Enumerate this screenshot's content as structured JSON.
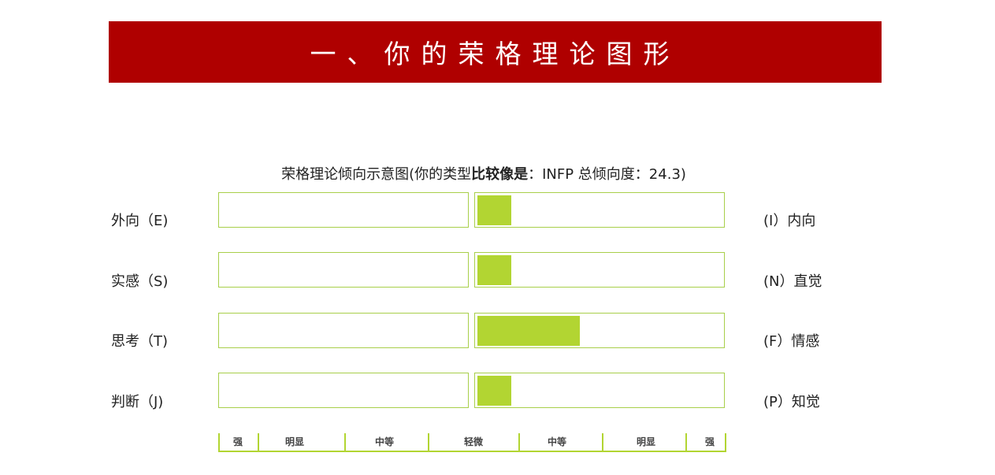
{
  "header": {
    "title": "一、你的荣格理论图形"
  },
  "chart": {
    "caption_prefix": "荣格理论倾向示意图(你的类型",
    "caption_bold": "比较像是",
    "caption_suffix": "：INFP 总倾向度：24.3)",
    "rows": [
      {
        "left_label": "外向（E)",
        "right_label": "(I）内向",
        "fill_fraction": 0.14
      },
      {
        "left_label": "实感（S)",
        "right_label": "(N）直觉",
        "fill_fraction": 0.14
      },
      {
        "left_label": "思考（T)",
        "right_label": "(F）情感",
        "fill_fraction": 0.42
      },
      {
        "left_label": "判断（J)",
        "right_label": "(P）知觉",
        "fill_fraction": 0.14
      }
    ],
    "scale_labels": [
      "强",
      "明显",
      "中等",
      "轻微",
      "中等",
      "明显",
      "强"
    ]
  },
  "colors": {
    "banner": "#af0000",
    "accent": "#b2d532",
    "border": "#a8cf4a"
  }
}
